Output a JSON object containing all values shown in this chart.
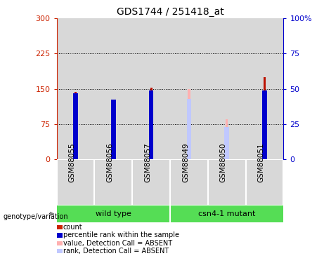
{
  "title": "GDS1744 / 251418_at",
  "categories": [
    "GSM88055",
    "GSM88056",
    "GSM88057",
    "GSM88049",
    "GSM88050",
    "GSM88051"
  ],
  "red_bars": [
    143,
    120,
    153,
    null,
    null,
    175
  ],
  "blue_bar_heights": [
    140,
    127,
    147,
    null,
    null,
    147
  ],
  "pink_bars": [
    null,
    null,
    null,
    150,
    85,
    null
  ],
  "lightblue_bar_heights": [
    null,
    null,
    null,
    128,
    68,
    null
  ],
  "ylim_left": [
    0,
    300
  ],
  "ylim_right": [
    0,
    100
  ],
  "yticks_left": [
    0,
    75,
    150,
    225,
    300
  ],
  "yticks_right": [
    0,
    25,
    50,
    75,
    100
  ],
  "ytick_labels_right": [
    "0",
    "25",
    "50",
    "75",
    "100%"
  ],
  "left_axis_color": "#cc2200",
  "right_axis_color": "#0000cc",
  "thin_bar_width": 0.06,
  "blue_square_size": 0.12,
  "wild_type_label": "wild type",
  "mutant_label": "csn4-1 mutant",
  "genotype_label": "genotype/variation",
  "legend_items": [
    "count",
    "percentile rank within the sample",
    "value, Detection Call = ABSENT",
    "rank, Detection Call = ABSENT"
  ],
  "legend_colors": [
    "#cc2200",
    "#0000cc",
    "#ffb0b0",
    "#c0c8ff"
  ],
  "background_color": "#ffffff",
  "group_bg_color": "#d8d8d8",
  "genotype_bar_color": "#55dd55",
  "title_fontsize": 10,
  "gridline_color": "#000000",
  "bar_red_color": "#bb1100",
  "bar_blue_color": "#0000cc",
  "bar_pink_color": "#ffb0b0",
  "bar_lightblue_color": "#c0c8ff"
}
